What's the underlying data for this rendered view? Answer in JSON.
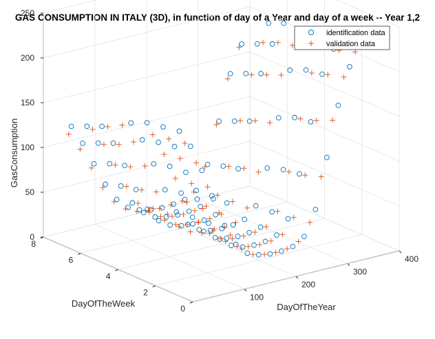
{
  "chart_data": {
    "type": "scatter",
    "title": "GAS CONSUMPTION IN ITALY (3D), in function of day of a Year and day of a week -- Year 1,2",
    "xlabel": "DayOfTheYear",
    "ylabel": "DayOfTheWeek",
    "zlabel": "GasConsumption",
    "xlim": [
      0,
      400
    ],
    "ylim": [
      0,
      8
    ],
    "zlim": [
      0,
      250
    ],
    "xticks": [
      "100",
      "200",
      "300",
      "400"
    ],
    "yticks": [
      "0",
      "2",
      "4",
      "6",
      "8"
    ],
    "zticks": [
      "0",
      "50",
      "100",
      "150",
      "200",
      "250"
    ],
    "grid": true,
    "legend_position": "top-right",
    "series": [
      {
        "name": "identification data",
        "marker": "o",
        "color": "#0072BD",
        "x": [
          10,
          32,
          54,
          76,
          98,
          120,
          142,
          164,
          186,
          208,
          230,
          252,
          274,
          296,
          318,
          340,
          362,
          15,
          37,
          59,
          81,
          103,
          125,
          147,
          169,
          191,
          213,
          235,
          257,
          279,
          301,
          323,
          345,
          20,
          42,
          64,
          86,
          108,
          130,
          152,
          174,
          196,
          218,
          240,
          262,
          284,
          306,
          328,
          350,
          25,
          47,
          69,
          91,
          113,
          135,
          157,
          179,
          201,
          223,
          245,
          267,
          289,
          311,
          333,
          355,
          5,
          27,
          49,
          71,
          93,
          115,
          137,
          159,
          181,
          203,
          225,
          247,
          269,
          291,
          313,
          335,
          357,
          12,
          34,
          56,
          78,
          100,
          122,
          144,
          166,
          188,
          210,
          232,
          254,
          276,
          298,
          320,
          342,
          364,
          18,
          40,
          62,
          84,
          106,
          128,
          150,
          172,
          194,
          216,
          238,
          260,
          282,
          304,
          326,
          348
        ],
        "y": [
          1,
          1,
          1,
          1,
          1,
          1,
          1,
          1,
          1,
          1,
          1,
          1,
          1,
          1,
          1,
          1,
          1,
          2,
          2,
          2,
          2,
          2,
          2,
          2,
          2,
          2,
          2,
          2,
          2,
          2,
          2,
          2,
          2,
          3,
          3,
          3,
          3,
          3,
          3,
          3,
          3,
          3,
          3,
          3,
          3,
          3,
          3,
          3,
          3,
          4,
          4,
          4,
          4,
          4,
          4,
          4,
          4,
          4,
          4,
          4,
          4,
          4,
          4,
          4,
          4,
          5,
          5,
          5,
          5,
          5,
          5,
          5,
          5,
          5,
          5,
          5,
          5,
          5,
          5,
          5,
          5,
          5,
          6,
          6,
          6,
          6,
          6,
          6,
          6,
          6,
          6,
          6,
          6,
          6,
          6,
          6,
          6,
          6,
          6,
          7,
          7,
          7,
          7,
          7,
          7,
          7,
          7,
          7,
          7,
          7,
          7,
          7,
          7,
          7,
          7
        ],
        "z": [
          180,
          160,
          130,
          95,
          62,
          38,
          25,
          20,
          18,
          18,
          20,
          28,
          55,
          110,
          165,
          205,
          225,
          175,
          150,
          118,
          85,
          55,
          34,
          24,
          19,
          18,
          19,
          23,
          38,
          85,
          140,
          190,
          215,
          170,
          145,
          115,
          82,
          52,
          33,
          23,
          19,
          18,
          19,
          22,
          36,
          80,
          135,
          185,
          210,
          160,
          138,
          108,
          76,
          48,
          31,
          22,
          18,
          17,
          18,
          21,
          33,
          72,
          125,
          175,
          205,
          150,
          128,
          100,
          70,
          45,
          29,
          21,
          17,
          16,
          17,
          20,
          30,
          65,
          115,
          165,
          195,
          215,
          140,
          118,
          92,
          64,
          42,
          28,
          20,
          17,
          16,
          17,
          19,
          28,
          58,
          105,
          155,
          185,
          205,
          130,
          108,
          82,
          56,
          36,
          24,
          18,
          15,
          14,
          15,
          17,
          24,
          50,
          95,
          145,
          175
        ]
      },
      {
        "name": "validation data",
        "marker": "+",
        "color": "#D95319",
        "x": [
          21,
          43,
          65,
          87,
          109,
          131,
          153,
          175,
          197,
          219,
          241,
          263,
          285,
          307,
          329,
          351,
          26,
          48,
          70,
          92,
          114,
          136,
          158,
          180,
          202,
          224,
          246,
          268,
          290,
          312,
          334,
          356,
          31,
          53,
          75,
          97,
          119,
          141,
          163,
          185,
          207,
          229,
          251,
          273,
          295,
          317,
          339,
          361,
          8,
          30,
          52,
          74,
          96,
          118,
          140,
          162,
          184,
          206,
          228,
          250,
          272,
          294,
          316,
          338,
          16,
          38,
          60,
          82,
          104,
          126,
          148,
          170,
          192,
          214,
          236,
          258,
          280,
          302,
          324,
          346,
          23,
          45,
          67,
          89,
          111,
          133,
          155,
          177,
          199,
          221,
          243,
          265,
          287,
          309,
          331,
          353,
          13,
          35,
          57,
          79,
          101,
          123,
          145,
          167,
          189,
          211,
          233,
          255,
          277,
          299,
          321,
          343
        ],
        "y": [
          1,
          1,
          1,
          1,
          1,
          1,
          1,
          1,
          1,
          1,
          1,
          1,
          1,
          1,
          1,
          1,
          2,
          2,
          2,
          2,
          2,
          2,
          2,
          2,
          2,
          2,
          2,
          2,
          2,
          2,
          2,
          2,
          3,
          3,
          3,
          3,
          3,
          3,
          3,
          3,
          3,
          3,
          3,
          3,
          3,
          3,
          3,
          3,
          4,
          4,
          4,
          4,
          4,
          4,
          4,
          4,
          4,
          4,
          4,
          4,
          4,
          4,
          4,
          4,
          5,
          5,
          5,
          5,
          5,
          5,
          5,
          5,
          5,
          5,
          5,
          5,
          5,
          5,
          5,
          5,
          6,
          6,
          6,
          6,
          6,
          6,
          6,
          6,
          6,
          6,
          6,
          6,
          6,
          6,
          6,
          6,
          7,
          7,
          7,
          7,
          7,
          7,
          7,
          7,
          7,
          7,
          7,
          7,
          7,
          7,
          7,
          7
        ],
        "z": [
          165,
          140,
          110,
          78,
          50,
          31,
          22,
          19,
          18,
          19,
          24,
          42,
          90,
          150,
          195,
          220,
          160,
          135,
          104,
          73,
          47,
          30,
          21,
          18,
          17,
          18,
          22,
          38,
          82,
          140,
          188,
          212,
          155,
          130,
          100,
          70,
          45,
          29,
          20,
          17,
          17,
          18,
          21,
          35,
          76,
          132,
          180,
          208,
          160,
          138,
          108,
          76,
          48,
          31,
          22,
          18,
          17,
          18,
          20,
          33,
          70,
          122,
          172,
          202,
          148,
          125,
          97,
          68,
          44,
          28,
          20,
          17,
          16,
          17,
          19,
          30,
          64,
          114,
          162,
          195,
          135,
          115,
          89,
          62,
          40,
          27,
          19,
          16,
          15,
          16,
          18,
          27,
          56,
          104,
          152,
          185,
          122,
          102,
          78,
          53,
          34,
          23,
          17,
          15,
          14,
          15,
          16,
          23,
          48,
          92,
          140,
          172
        ]
      }
    ]
  },
  "legend": {
    "identification_label": "identification data",
    "validation_label": "validation data"
  }
}
